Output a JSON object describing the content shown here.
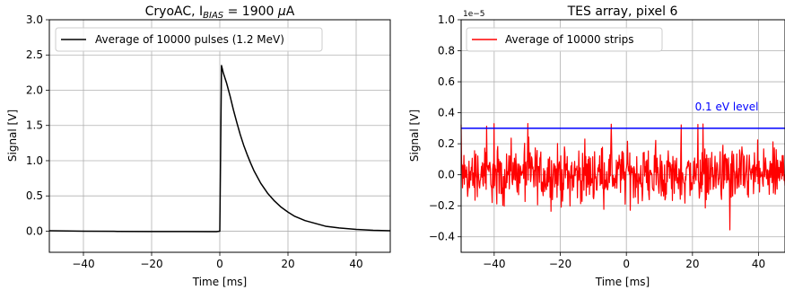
{
  "chart_data": [
    {
      "type": "line",
      "title": "CryoAC, I",
      "title_sub": "BIAS",
      "title_rest": " = 1900 ",
      "title_mu": "μ",
      "title_unit": "A",
      "xlabel": "Time [ms]",
      "ylabel": "Signal [V]",
      "xlim": [
        -50,
        50
      ],
      "ylim": [
        -0.3,
        3.0
      ],
      "xticks": [
        -40,
        -20,
        0,
        20,
        40
      ],
      "xtick_labels": [
        "−40",
        "−20",
        "0",
        "20",
        "40"
      ],
      "yticks": [
        0.0,
        0.5,
        1.0,
        1.5,
        2.0,
        2.5,
        3.0
      ],
      "ytick_labels": [
        "0.0",
        "0.5",
        "1.0",
        "1.5",
        "2.0",
        "2.5",
        "3.0"
      ],
      "grid": true,
      "legend_position": "top-left",
      "series": [
        {
          "name": "Average of 10000 pulses (1.2 MeV)",
          "color": "#000000",
          "x": [
            -50,
            -40,
            -30,
            -20,
            -10,
            -1,
            0,
            0.5,
            1,
            2,
            3,
            4,
            5,
            6,
            7,
            8,
            9,
            10,
            12,
            14,
            16,
            18,
            20,
            22,
            25,
            28,
            31,
            35,
            40,
            45,
            50
          ],
          "y": [
            0.005,
            0.0,
            -0.003,
            -0.005,
            -0.006,
            -0.007,
            0.0,
            2.35,
            2.25,
            2.1,
            1.92,
            1.72,
            1.54,
            1.37,
            1.22,
            1.09,
            0.97,
            0.86,
            0.68,
            0.54,
            0.43,
            0.34,
            0.27,
            0.21,
            0.15,
            0.11,
            0.07,
            0.045,
            0.025,
            0.012,
            0.005
          ]
        }
      ]
    },
    {
      "type": "line",
      "title": "TES array, pixel 6",
      "xlabel": "Time [ms]",
      "ylabel": "Signal [V]",
      "y_scale_label": "1e−5",
      "xlim": [
        -50,
        48
      ],
      "ylim": [
        -0.5,
        1.0
      ],
      "xticks": [
        -40,
        -20,
        0,
        20,
        40
      ],
      "xtick_labels": [
        "−40",
        "−20",
        "0",
        "20",
        "40"
      ],
      "yticks": [
        -0.4,
        -0.2,
        0.0,
        0.2,
        0.4,
        0.6,
        0.8,
        1.0
      ],
      "ytick_labels": [
        "−0.4",
        "−0.2",
        "0.0",
        "0.2",
        "0.4",
        "0.6",
        "0.8",
        "1.0"
      ],
      "grid": true,
      "legend_position": "top-left",
      "series": [
        {
          "name": "Average of 10000 strips",
          "color": "#ff0000",
          "noise_center": 0.0,
          "noise_amplitude": 0.11,
          "noise_max": 0.34,
          "noise_min": -0.37
        }
      ],
      "reference_line": {
        "label": "0.1 eV level",
        "y": 0.3,
        "color": "#0000ff"
      }
    }
  ]
}
